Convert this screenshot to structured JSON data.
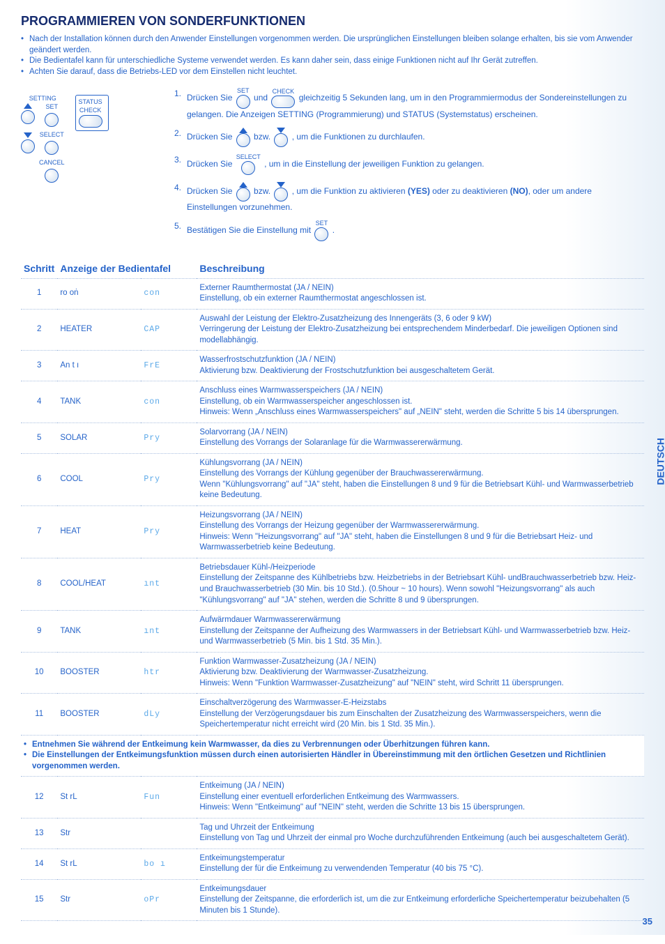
{
  "title": "PROGRAMMIEREN VON SONDERFUNKTIONEN",
  "intro": [
    "Nach der Installation können durch den Anwender Einstellungen vorgenommen werden. Die ursprünglichen Einstellungen bleiben solange erhalten, bis sie vom Anwender geändert werden.",
    "Die Bedientafel kann für unterschiedliche Systeme verwendet werden. Es kann daher sein, dass einige Funktionen nicht auf Ihr Gerät zutreffen.",
    "Achten Sie darauf, dass die Betriebs-LED vor dem Einstellen nicht leuchtet."
  ],
  "panel": {
    "setting": "SETTING",
    "set": "SET",
    "select": "SELECT",
    "cancel": "CANCEL",
    "status": "STATUS",
    "check": "CHECK"
  },
  "steps": {
    "s1a": "Drücken Sie ",
    "s1b": " und ",
    "s1c": " gleichzeitig 5 Sekunden lang, um in den Programmiermodus der Sondereinstellungen zu gelangen. Die Anzeigen SETTING (Programmierung) und STATUS (Systemstatus) erscheinen.",
    "s2a": "Drücken Sie ",
    "s2b": " bzw. ",
    "s2c": ", um die Funktionen zu durchlaufen.",
    "s3a": "Drücken Sie ",
    "s3b": " , um in die Einstellung der jeweiligen Funktion zu gelangen.",
    "s4a": "Drücken Sie ",
    "s4b": " bzw. ",
    "s4c": ", um die Funktion zu aktivieren ",
    "s4yes": "(YES)",
    "s4d": " oder zu deaktivieren ",
    "s4no": "(NO)",
    "s4e": ", oder um andere Einstellungen vorzunehmen.",
    "s5a": "Bestätigen Sie die Einstellung mit ",
    "s5b": "."
  },
  "headers": {
    "schritt": "Schritt",
    "anzeige": "Anzeige der Bedientafel",
    "besch": "Beschreibung"
  },
  "rows": [
    {
      "n": "1",
      "d1": "ro oṅ",
      "d2": "con",
      "title": "Externer Raumthermostat (JA / NEIN)",
      "body": "Einstellung, ob ein externer Raumthermostat angeschlossen ist."
    },
    {
      "n": "2",
      "d1": "HEATER",
      "d2": "CAP",
      "title": "Auswahl der Leistung der Elektro-Zusatzheizung des Innengeräts (3, 6 oder 9 kW)",
      "body": "Verringerung der Leistung der Elektro-Zusatzheizung bei entsprechendem Minderbedarf. Die jeweiligen Optionen sind modellabhängig."
    },
    {
      "n": "3",
      "d1": "An t ı",
      "d2": "FrE",
      "title": "Wasserfrostschutzfunktion (JA / NEIN)",
      "body": "Aktivierung bzw. Deaktivierung der Frostschutzfunktion bei ausgeschaltetem Gerät."
    },
    {
      "n": "4",
      "d1": "TANK",
      "d2": "con",
      "title": "Anschluss eines Warmwasserspeichers (JA / NEIN)",
      "body": "Einstellung, ob ein Warmwasserspeicher angeschlossen ist.\nHinweis: Wenn „Anschluss eines Warmwasserspeichers\" auf „NEIN\" steht, werden die Schritte 5 bis 14 übersprungen."
    },
    {
      "n": "5",
      "d1": "SOLAR",
      "d2": "Pry",
      "title": "Solarvorrang (JA / NEIN)",
      "body": "Einstellung des Vorrangs der Solaranlage für die Warmwassererwärmung."
    },
    {
      "n": "6",
      "d1": "COOL",
      "d2": "Pry",
      "title": "Kühlungsvorrang (JA / NEIN)",
      "body": "Einstellung des Vorrangs der Kühlung gegenüber der Brauchwassererwärmung.\nWenn \"Kühlungsvorrang\" auf \"JA\" steht, haben die Einstellungen 8 und 9 für die Betriebsart Kühl- und Warmwasserbetrieb keine Bedeutung."
    },
    {
      "n": "7",
      "d1": "HEAT",
      "d2": "Pry",
      "title": "Heizungsvorrang (JA / NEIN)",
      "body": "Einstellung des Vorrangs der Heizung gegenüber der Warmwassererwärmung.\nHinweis: Wenn \"Heizungsvorrang\" auf \"JA\" steht, haben die Einstellungen 8 und 9 für die Betriebsart Heiz- und Warmwasserbetrieb keine Bedeutung."
    },
    {
      "n": "8",
      "d1": "COOL/HEAT",
      "d2": "ınt",
      "title": "Betriebsdauer Kühl-/Heizperiode",
      "body": "Einstellung der Zeitspanne des Kühlbetriebs bzw. Heizbetriebs in der Betriebsart Kühl- undBrauchwasserbetrieb bzw. Heiz- und Brauchwasserbetrieb (30 Min. bis 10 Std.). (0.5hour ~ 10 hours). Wenn sowohl \"Heizungsvorrang\" als auch \"Kühlungsvorrang\" auf \"JA\" stehen, werden die Schritte 8 und 9 übersprungen."
    },
    {
      "n": "9",
      "d1": "TANK",
      "d2": "ınt",
      "title": "Aufwärmdauer Warmwassererwärmung",
      "body": "Einstellung der Zeitspanne der Aufheizung des Warmwassers in der Betriebsart Kühl- und Warmwasserbetrieb bzw. Heiz- und Warmwasserbetrieb (5 Min. bis 1 Std. 35 Min.)."
    },
    {
      "n": "10",
      "d1": "BOOSTER",
      "d2": "htr",
      "title": "Funktion Warmwasser-Zusatzheizung (JA / NEIN)",
      "body": "Aktivierung bzw. Deaktivierung der Warmwasser-Zusatzheizung.\nHinweis: Wenn \"Funktion Warmwasser-Zusatzheizung\" auf \"NEIN\" steht, wird Schritt 11 übersprungen."
    },
    {
      "n": "11",
      "d1": "BOOSTER",
      "d2": "dLy",
      "title": "Einschaltverzögerung des Warmwasser-E-Heizstabs",
      "body": "Einstellung der Verzögerungsdauer bis zum Einschalten der Zusatzheizung des Warmwasserspeichers, wenn die Speichertemperatur nicht erreicht wird (20 Min. bis 1 Std. 35 Min.)."
    }
  ],
  "warning": [
    "Entnehmen Sie während der Entkeimung kein Warmwasser, da dies zu Verbrennungen oder Überhitzungen führen kann.",
    "Die Einstellungen der Entkeimungsfunktion müssen durch einen autorisierten Händler in Übereinstimmung mit den örtlichen Gesetzen und Richtlinien vorgenommen werden."
  ],
  "rows2": [
    {
      "n": "12",
      "d1": "St rL",
      "d2": "Fun",
      "title": "Entkeimung (JA / NEIN)",
      "body": "Einstellung einer eventuell erforderlichen Entkeimung des Warmwassers.\nHinweis: Wenn \"Entkeimung\" auf \"NEIN\" steht, werden die Schritte 13 bis 15 übersprungen."
    },
    {
      "n": "13",
      "d1": "Str",
      "d2": "",
      "title": "Tag und Uhrzeit der Entkeimung",
      "body": "Einstellung von Tag und Uhrzeit der einmal pro Woche durchzuführenden Entkeimung (auch bei ausgeschaltetem Gerät)."
    },
    {
      "n": "14",
      "d1": "St rL",
      "d2": "bo ı",
      "title": "Entkeimungstemperatur",
      "body": "Einstellung der für die Entkeimung zu verwendenden Temperatur (40 bis 75 °C)."
    },
    {
      "n": "15",
      "d1": "Str",
      "d2": "oPr",
      "title": "Entkeimungsdauer",
      "body": "Einstellung der Zeitspanne, die erforderlich ist, um die zur Entkeimung erforderliche Speichertemperatur beizubehalten (5 Minuten bis 1 Stunde)."
    }
  ],
  "sideLabel": "DEUTSCH",
  "pageNum": "35"
}
